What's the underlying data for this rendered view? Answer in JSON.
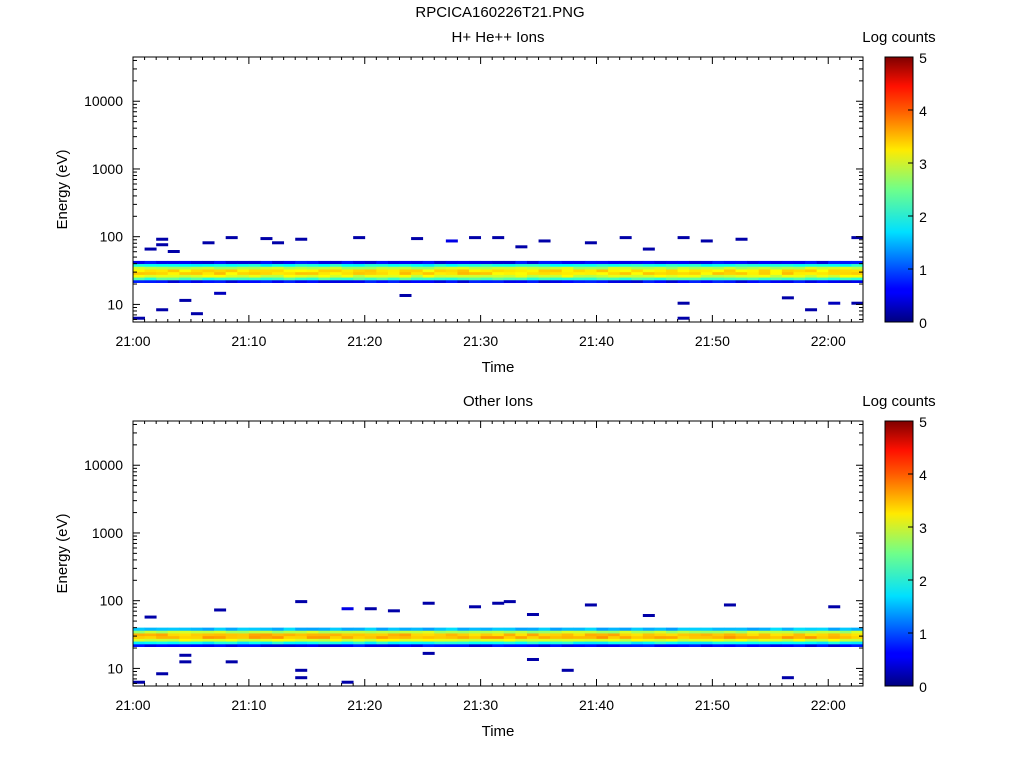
{
  "figure_title": "RPCICA160226T21.PNG",
  "chart_data": [
    {
      "type": "heatmap",
      "title": "H+ He++ Ions",
      "xlabel": "Time",
      "ylabel": "Energy (eV)",
      "x_ticks": [
        "21:00",
        "21:10",
        "21:20",
        "21:30",
        "21:40",
        "21:50",
        "22:00"
      ],
      "x_range": [
        "21:00",
        "22:03"
      ],
      "y_scale": "log",
      "y_range": [
        5.5,
        45000
      ],
      "y_ticks": [
        10,
        100,
        1000,
        10000
      ],
      "colorbar": {
        "label": "Log counts",
        "range": [
          0,
          5
        ],
        "ticks": [
          0,
          1,
          2,
          3,
          4,
          5
        ],
        "colormap": "jet"
      },
      "band": {
        "energy_low_eV": 21,
        "energy_high_eV": 42,
        "core_eV": 30,
        "peak_log_counts": 3.5
      },
      "sparse_counts": [
        {
          "time_min": 0.5,
          "energy_eV": 6,
          "log_counts": 0.2
        },
        {
          "time_min": 1.5,
          "energy_eV": 63,
          "log_counts": 0.2
        },
        {
          "time_min": 2.5,
          "energy_eV": 73,
          "log_counts": 0.2
        },
        {
          "time_min": 2.5,
          "energy_eV": 88,
          "log_counts": 0.2
        },
        {
          "time_min": 2.5,
          "energy_eV": 8,
          "log_counts": 0.2
        },
        {
          "time_min": 3.5,
          "energy_eV": 58,
          "log_counts": 0.2
        },
        {
          "time_min": 4.5,
          "energy_eV": 11,
          "log_counts": 0.2
        },
        {
          "time_min": 5.5,
          "energy_eV": 7,
          "log_counts": 0.2
        },
        {
          "time_min": 6.5,
          "energy_eV": 78,
          "log_counts": 0.2
        },
        {
          "time_min": 7.5,
          "energy_eV": 14,
          "log_counts": 0.3
        },
        {
          "time_min": 8.5,
          "energy_eV": 93,
          "log_counts": 0.2
        },
        {
          "time_min": 11.5,
          "energy_eV": 90,
          "log_counts": 0.2
        },
        {
          "time_min": 12.5,
          "energy_eV": 78,
          "log_counts": 0.2
        },
        {
          "time_min": 14.5,
          "energy_eV": 88,
          "log_counts": 0.2
        },
        {
          "time_min": 19.5,
          "energy_eV": 93,
          "log_counts": 0.2
        },
        {
          "time_min": 23.5,
          "energy_eV": 13,
          "log_counts": 0.2
        },
        {
          "time_min": 24.5,
          "energy_eV": 90,
          "log_counts": 0.2
        },
        {
          "time_min": 27.5,
          "energy_eV": 83,
          "log_counts": 0.5
        },
        {
          "time_min": 29.5,
          "energy_eV": 93,
          "log_counts": 0.2
        },
        {
          "time_min": 31.5,
          "energy_eV": 93,
          "log_counts": 0.2
        },
        {
          "time_min": 33.5,
          "energy_eV": 68,
          "log_counts": 0.2
        },
        {
          "time_min": 35.5,
          "energy_eV": 83,
          "log_counts": 0.2
        },
        {
          "time_min": 39.5,
          "energy_eV": 78,
          "log_counts": 0.2
        },
        {
          "time_min": 42.5,
          "energy_eV": 93,
          "log_counts": 0.2
        },
        {
          "time_min": 44.5,
          "energy_eV": 63,
          "log_counts": 0.2
        },
        {
          "time_min": 47.5,
          "energy_eV": 93,
          "log_counts": 0.2
        },
        {
          "time_min": 47.5,
          "energy_eV": 10,
          "log_counts": 0.2
        },
        {
          "time_min": 47.5,
          "energy_eV": 6,
          "log_counts": 0.2
        },
        {
          "time_min": 49.5,
          "energy_eV": 83,
          "log_counts": 0.2
        },
        {
          "time_min": 52.5,
          "energy_eV": 88,
          "log_counts": 0.2
        },
        {
          "time_min": 56.5,
          "energy_eV": 12,
          "log_counts": 0.2
        },
        {
          "time_min": 58.5,
          "energy_eV": 8,
          "log_counts": 0.2
        },
        {
          "time_min": 60.5,
          "energy_eV": 10,
          "log_counts": 0.3
        },
        {
          "time_min": 62.5,
          "energy_eV": 93,
          "log_counts": 0.2
        },
        {
          "time_min": 62.5,
          "energy_eV": 10,
          "log_counts": 0.2
        }
      ]
    },
    {
      "type": "heatmap",
      "title": "Other Ions",
      "xlabel": "Time",
      "ylabel": "Energy (eV)",
      "x_ticks": [
        "21:00",
        "21:10",
        "21:20",
        "21:30",
        "21:40",
        "21:50",
        "22:00"
      ],
      "x_range": [
        "21:00",
        "22:03"
      ],
      "y_scale": "log",
      "y_range": [
        5.5,
        45000
      ],
      "y_ticks": [
        10,
        100,
        1000,
        10000
      ],
      "colorbar": {
        "label": "Log counts",
        "range": [
          0,
          5
        ],
        "ticks": [
          0,
          1,
          2,
          3,
          4,
          5
        ],
        "colormap": "jet"
      },
      "band": {
        "energy_low_eV": 21,
        "energy_high_eV": 40,
        "core_eV": 30,
        "peak_log_counts": 3.7
      },
      "sparse_counts": [
        {
          "time_min": 0.5,
          "energy_eV": 6,
          "log_counts": 0.2
        },
        {
          "time_min": 1.5,
          "energy_eV": 55,
          "log_counts": 0.2
        },
        {
          "time_min": 2.5,
          "energy_eV": 8,
          "log_counts": 0.2
        },
        {
          "time_min": 4.5,
          "energy_eV": 12,
          "log_counts": 0.2
        },
        {
          "time_min": 4.5,
          "energy_eV": 15,
          "log_counts": 0.2
        },
        {
          "time_min": 7.5,
          "energy_eV": 70,
          "log_counts": 0.2
        },
        {
          "time_min": 8.5,
          "energy_eV": 12,
          "log_counts": 0.2
        },
        {
          "time_min": 14.5,
          "energy_eV": 9,
          "log_counts": 0.2
        },
        {
          "time_min": 14.5,
          "energy_eV": 7,
          "log_counts": 0.2
        },
        {
          "time_min": 14.5,
          "energy_eV": 93,
          "log_counts": 0.2
        },
        {
          "time_min": 18.5,
          "energy_eV": 73,
          "log_counts": 0.5
        },
        {
          "time_min": 18.5,
          "energy_eV": 6,
          "log_counts": 0.2
        },
        {
          "time_min": 20.5,
          "energy_eV": 73,
          "log_counts": 0.2
        },
        {
          "time_min": 22.5,
          "energy_eV": 68,
          "log_counts": 0.2
        },
        {
          "time_min": 25.5,
          "energy_eV": 88,
          "log_counts": 0.2
        },
        {
          "time_min": 25.5,
          "energy_eV": 16,
          "log_counts": 0.2
        },
        {
          "time_min": 29.5,
          "energy_eV": 78,
          "log_counts": 0.2
        },
        {
          "time_min": 31.5,
          "energy_eV": 88,
          "log_counts": 0.2
        },
        {
          "time_min": 32.5,
          "energy_eV": 93,
          "log_counts": 0.2
        },
        {
          "time_min": 34.5,
          "energy_eV": 13,
          "log_counts": 0.2
        },
        {
          "time_min": 34.5,
          "energy_eV": 60,
          "log_counts": 0.2
        },
        {
          "time_min": 37.5,
          "energy_eV": 9,
          "log_counts": 0.2
        },
        {
          "time_min": 39.5,
          "energy_eV": 83,
          "log_counts": 0.2
        },
        {
          "time_min": 44.5,
          "energy_eV": 58,
          "log_counts": 0.2
        },
        {
          "time_min": 51.5,
          "energy_eV": 83,
          "log_counts": 0.2
        },
        {
          "time_min": 56.5,
          "energy_eV": 7,
          "log_counts": 0.2
        },
        {
          "time_min": 60.5,
          "energy_eV": 78,
          "log_counts": 0.2
        }
      ]
    }
  ]
}
